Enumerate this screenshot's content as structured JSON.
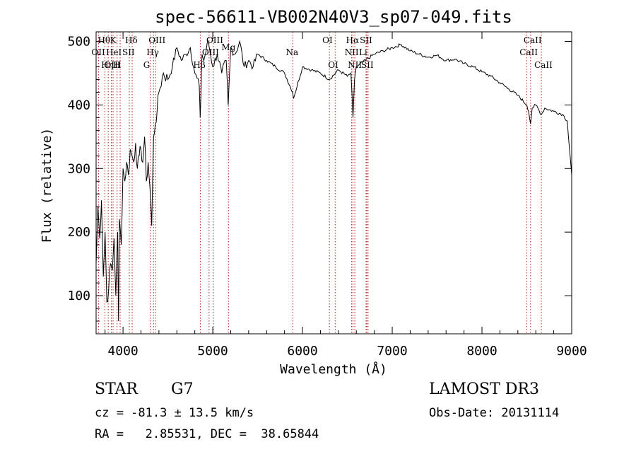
{
  "chart_data": {
    "type": "line",
    "title": "spec-56611-VB002N40V3_sp07-049.fits",
    "xlabel": "Wavelength (Å)",
    "ylabel": "Flux (relative)",
    "xlim": [
      3700,
      9000
    ],
    "ylim": [
      40,
      515
    ],
    "x_ticks": [
      4000,
      5000,
      6000,
      7000,
      8000,
      9000
    ],
    "x_tick_labels": [
      "4000",
      "5000",
      "6000",
      "7000",
      "8000",
      "9000"
    ],
    "y_ticks": [
      100,
      200,
      300,
      400,
      500
    ],
    "y_tick_labels": [
      "100",
      "200",
      "300",
      "400",
      "500"
    ],
    "series": [
      {
        "name": "flux",
        "x": [
          3700,
          3720,
          3740,
          3760,
          3780,
          3800,
          3820,
          3840,
          3860,
          3880,
          3900,
          3920,
          3940,
          3950,
          3960,
          3980,
          4000,
          4020,
          4040,
          4060,
          4080,
          4100,
          4120,
          4140,
          4160,
          4180,
          4200,
          4220,
          4240,
          4260,
          4280,
          4300,
          4320,
          4340,
          4360,
          4380,
          4400,
          4450,
          4500,
          4550,
          4600,
          4650,
          4700,
          4750,
          4800,
          4850,
          4860,
          4880,
          4900,
          4950,
          5000,
          5050,
          5100,
          5150,
          5172,
          5200,
          5250,
          5300,
          5350,
          5400,
          5450,
          5500,
          5600,
          5700,
          5800,
          5890,
          5900,
          6000,
          6100,
          6200,
          6300,
          6400,
          6500,
          6540,
          6563,
          6580,
          6600,
          6700,
          6800,
          6900,
          7000,
          7100,
          7200,
          7300,
          7400,
          7500,
          7600,
          7700,
          7800,
          7900,
          8000,
          8100,
          8200,
          8300,
          8400,
          8500,
          8520,
          8542,
          8560,
          8600,
          8662,
          8700,
          8800,
          8900,
          8950,
          9000
        ],
        "values": [
          150,
          240,
          190,
          250,
          130,
          200,
          90,
          110,
          150,
          140,
          190,
          100,
          200,
          60,
          220,
          180,
          300,
          280,
          310,
          290,
          330,
          320,
          310,
          340,
          300,
          320,
          330,
          310,
          350,
          280,
          310,
          270,
          210,
          350,
          370,
          390,
          420,
          450,
          440,
          460,
          490,
          470,
          480,
          490,
          450,
          430,
          380,
          480,
          470,
          500,
          460,
          480,
          450,
          470,
          400,
          490,
          480,
          500,
          460,
          470,
          460,
          480,
          470,
          460,
          450,
          420,
          410,
          460,
          455,
          450,
          440,
          455,
          445,
          450,
          380,
          440,
          460,
          470,
          480,
          485,
          490,
          495,
          485,
          480,
          475,
          478,
          470,
          472,
          465,
          460,
          452,
          445,
          435,
          425,
          415,
          400,
          390,
          370,
          395,
          400,
          385,
          395,
          390,
          385,
          375,
          290
        ]
      }
    ],
    "lines": [
      {
        "name": "Hθ",
        "x": 3798,
        "row": 1
      },
      {
        "name": "OII",
        "x": 3727,
        "row": 2
      },
      {
        "name": "OIII",
        "x": 3869,
        "row": 3
      },
      {
        "name": "K",
        "x": 3934,
        "row": 1
      },
      {
        "name": "HeI",
        "x": 3889,
        "row": 2
      },
      {
        "name": "Hη",
        "x": 3835,
        "row": 3
      },
      {
        "name": "Hδ",
        "x": 4102,
        "row": 1
      },
      {
        "name": "SII",
        "x": 4070,
        "row": 2
      },
      {
        "name": "H",
        "x": 3968,
        "row": 3
      },
      {
        "name": "OIII",
        "x": 4363,
        "row": 1
      },
      {
        "name": "Hγ",
        "x": 4340,
        "row": 2
      },
      {
        "name": "G",
        "x": 4304,
        "row": 3
      },
      {
        "name": "OIII",
        "x": 5007,
        "row": 1
      },
      {
        "name": "OIII",
        "x": 4959,
        "row": 2
      },
      {
        "name": "Hβ",
        "x": 4861,
        "row": 3
      },
      {
        "name": "Mg",
        "x": 5175,
        "row": 0
      },
      {
        "name": "Na",
        "x": 5893,
        "row": 2
      },
      {
        "name": "OI",
        "x": 6300,
        "row": 1
      },
      {
        "name": "OI",
        "x": 6364,
        "row": 3
      },
      {
        "name": "Hα",
        "x": 6563,
        "row": 1
      },
      {
        "name": "NII",
        "x": 6548,
        "row": 2
      },
      {
        "name": "NII",
        "x": 6583,
        "row": 3
      },
      {
        "name": "SII",
        "x": 6717,
        "row": 1
      },
      {
        "name": "Li",
        "x": 6708,
        "row": 2
      },
      {
        "name": "SII",
        "x": 6731,
        "row": 3
      },
      {
        "name": "CaII",
        "x": 8542,
        "row": 1
      },
      {
        "name": "CaII",
        "x": 8498,
        "row": 2
      },
      {
        "name": "CaII",
        "x": 8662,
        "row": 3
      }
    ]
  },
  "info": {
    "class": "STAR",
    "subclass": "G7",
    "survey": "LAMOST DR3",
    "cz": "cz = -81.3 ± 13.5 km/s",
    "obs_date": "Obs-Date: 20131114",
    "radec": "RA =   2.85531, DEC =  38.65844"
  },
  "colors": {
    "line_marker": "#b22222",
    "spectrum": "#000000",
    "axis": "#000000"
  }
}
